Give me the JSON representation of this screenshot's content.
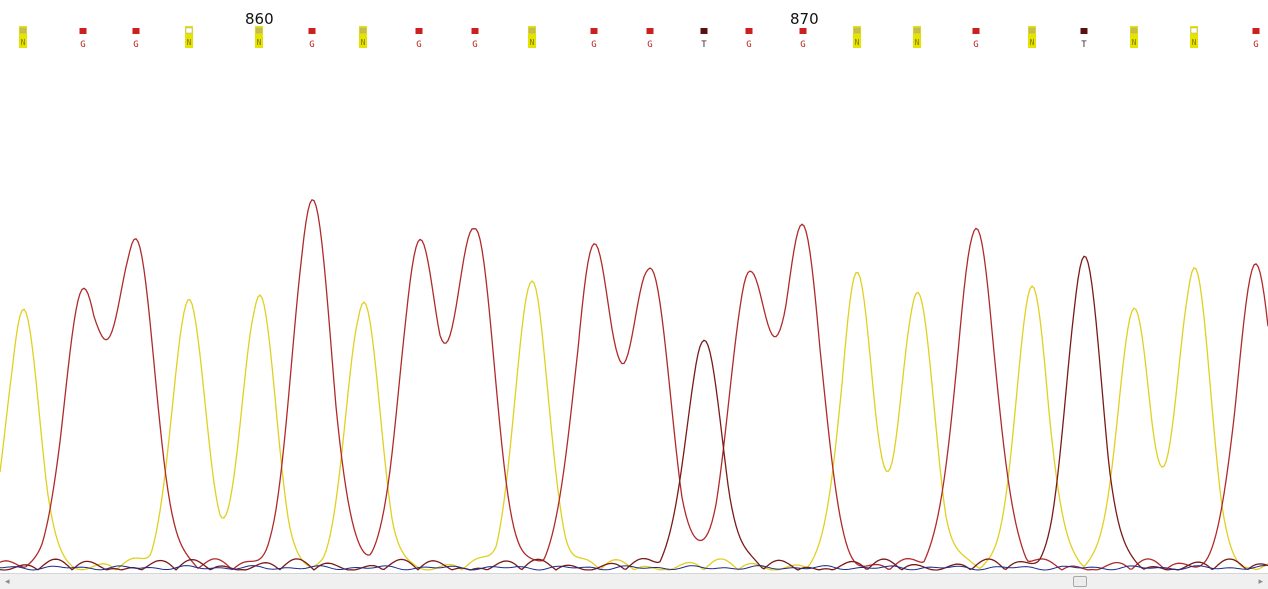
{
  "positions": {
    "label_860": "860",
    "label_870": "870"
  },
  "bases": [
    "N",
    "G",
    "G",
    "N",
    "N",
    "G",
    "N",
    "G",
    "G",
    "N",
    "G",
    "G",
    "T",
    "G",
    "G",
    "N",
    "N",
    "G",
    "N",
    "T",
    "N",
    "N",
    "G"
  ],
  "colors": {
    "G": "#cc1f1f",
    "N": "#e4e400",
    "T": "#5a1010",
    "trace_g": "#b02a2a",
    "trace_a": "#e0d020",
    "trace_t": "#7a1a1a",
    "trace_c": "#1a2a8a"
  },
  "chromatogram": {
    "peak_channel": [
      "A",
      "G",
      "G",
      "A",
      "A",
      "G",
      "A",
      "G",
      "G",
      "A",
      "G",
      "G",
      "T",
      "G",
      "G",
      "A",
      "A",
      "G",
      "A",
      "T",
      "A",
      "A",
      "G"
    ],
    "relative_heights": [
      0.68,
      0.72,
      0.87,
      0.73,
      0.73,
      0.98,
      0.71,
      0.86,
      0.91,
      0.78,
      0.85,
      0.8,
      0.62,
      0.79,
      0.89,
      0.78,
      0.74,
      0.92,
      0.75,
      0.83,
      0.7,
      0.8,
      0.8
    ]
  },
  "scrollbar": {
    "left_arrow": "◂",
    "right_arrow": "▸",
    "position": 0.86
  }
}
